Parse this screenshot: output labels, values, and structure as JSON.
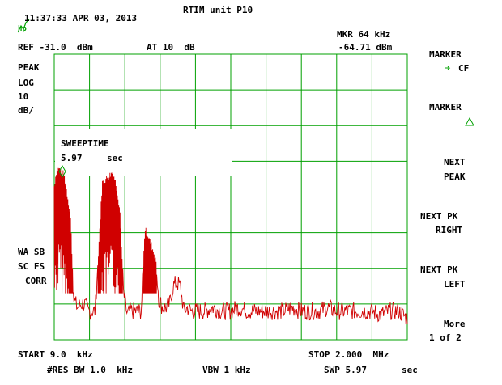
{
  "colors": {
    "grid": "#00a000",
    "trace": "#d00000",
    "text": "#000000",
    "marker": "#00a000"
  },
  "header": {
    "timestamp": "11:37:33 APR 03, 2013",
    "title": "RTIM unit P10",
    "logo": "hp",
    "ref_level": "REF -31.0  dBm",
    "attenuation": "AT 10  dB",
    "marker_freq": "MKR 64 kHz",
    "marker_level": "-64.71 dBm"
  },
  "left_annotations": {
    "detector": "PEAK",
    "scale_type": "LOG",
    "scale_value": "10",
    "scale_unit": "dB/",
    "wa_sb": "WA SB",
    "sc_fs": "SC FS",
    "corr": "CORR"
  },
  "sweeptime_box": {
    "label": "SWEEPTIME",
    "value": "5.97",
    "unit": "sec"
  },
  "softkeys": {
    "marker_cf_line1": "MARKER",
    "marker_cf_line2": "CF",
    "marker_delta_line1": "MARKER",
    "next_peak_line1": "NEXT",
    "next_peak_line2": "PEAK",
    "next_pk_right_line1": "NEXT PK",
    "next_pk_right_line2": "RIGHT",
    "next_pk_left_line1": "NEXT PK",
    "next_pk_left_line2": "LEFT",
    "more_line1": "More",
    "more_line2": "1 of 2"
  },
  "footer": {
    "start": "START 9.0  kHz",
    "stop": "STOP 2.000  MHz",
    "rbw": "#RES BW 1.0  kHz",
    "vbw": "VBW 1 kHz",
    "swp": "SWP 5.97",
    "swp_unit": "sec"
  },
  "chart_data": {
    "type": "line",
    "x_range_khz": [
      9.0,
      2000.0
    ],
    "ref_level_dbm": -31.0,
    "scale_db_per_div": 10,
    "grid": true,
    "divisions": {
      "x": 10,
      "y": 8
    },
    "marker": {
      "freq_khz": 64,
      "level_dbm": -64.71
    },
    "series": [
      {
        "x_khz": [
          9,
          20,
          35,
          50,
          64,
          75,
          100,
          120,
          140,
          160,
          180,
          200,
          240,
          280,
          300,
          320,
          340,
          360,
          380,
          400,
          420,
          440,
          460,
          480,
          500,
          520,
          540,
          560,
          580,
          600,
          620,
          640,
          660,
          680,
          700,
          720,
          740,
          760,
          780,
          800,
          820,
          860,
          900,
          950,
          1000,
          1050,
          1100,
          1150,
          1200,
          1250,
          1300,
          1350,
          1400,
          1450,
          1500,
          1550,
          1600,
          1650,
          1700,
          1750,
          1800,
          1850,
          1900,
          1950,
          2000
        ],
        "envelope_dbm": [
          -68,
          -64,
          -63,
          -64,
          -64.7,
          -68,
          -76,
          -100,
          -102,
          -101,
          -101,
          -103,
          -103,
          -67,
          -66,
          -65,
          -64,
          -68,
          -75,
          -98,
          -104,
          -103,
          -103,
          -103,
          -103,
          -80,
          -82,
          -85,
          -88,
          -100,
          -102,
          -102,
          -101,
          -96,
          -95,
          -96,
          -103,
          -102,
          -103,
          -103,
          -103,
          -103,
          -102,
          -103,
          -103,
          -102,
          -103,
          -103,
          -103,
          -103,
          -103,
          -102,
          -103,
          -103,
          -103,
          -102,
          -103,
          -103,
          -103,
          -103,
          -103,
          -104,
          -103,
          -103,
          -105
        ]
      }
    ]
  }
}
